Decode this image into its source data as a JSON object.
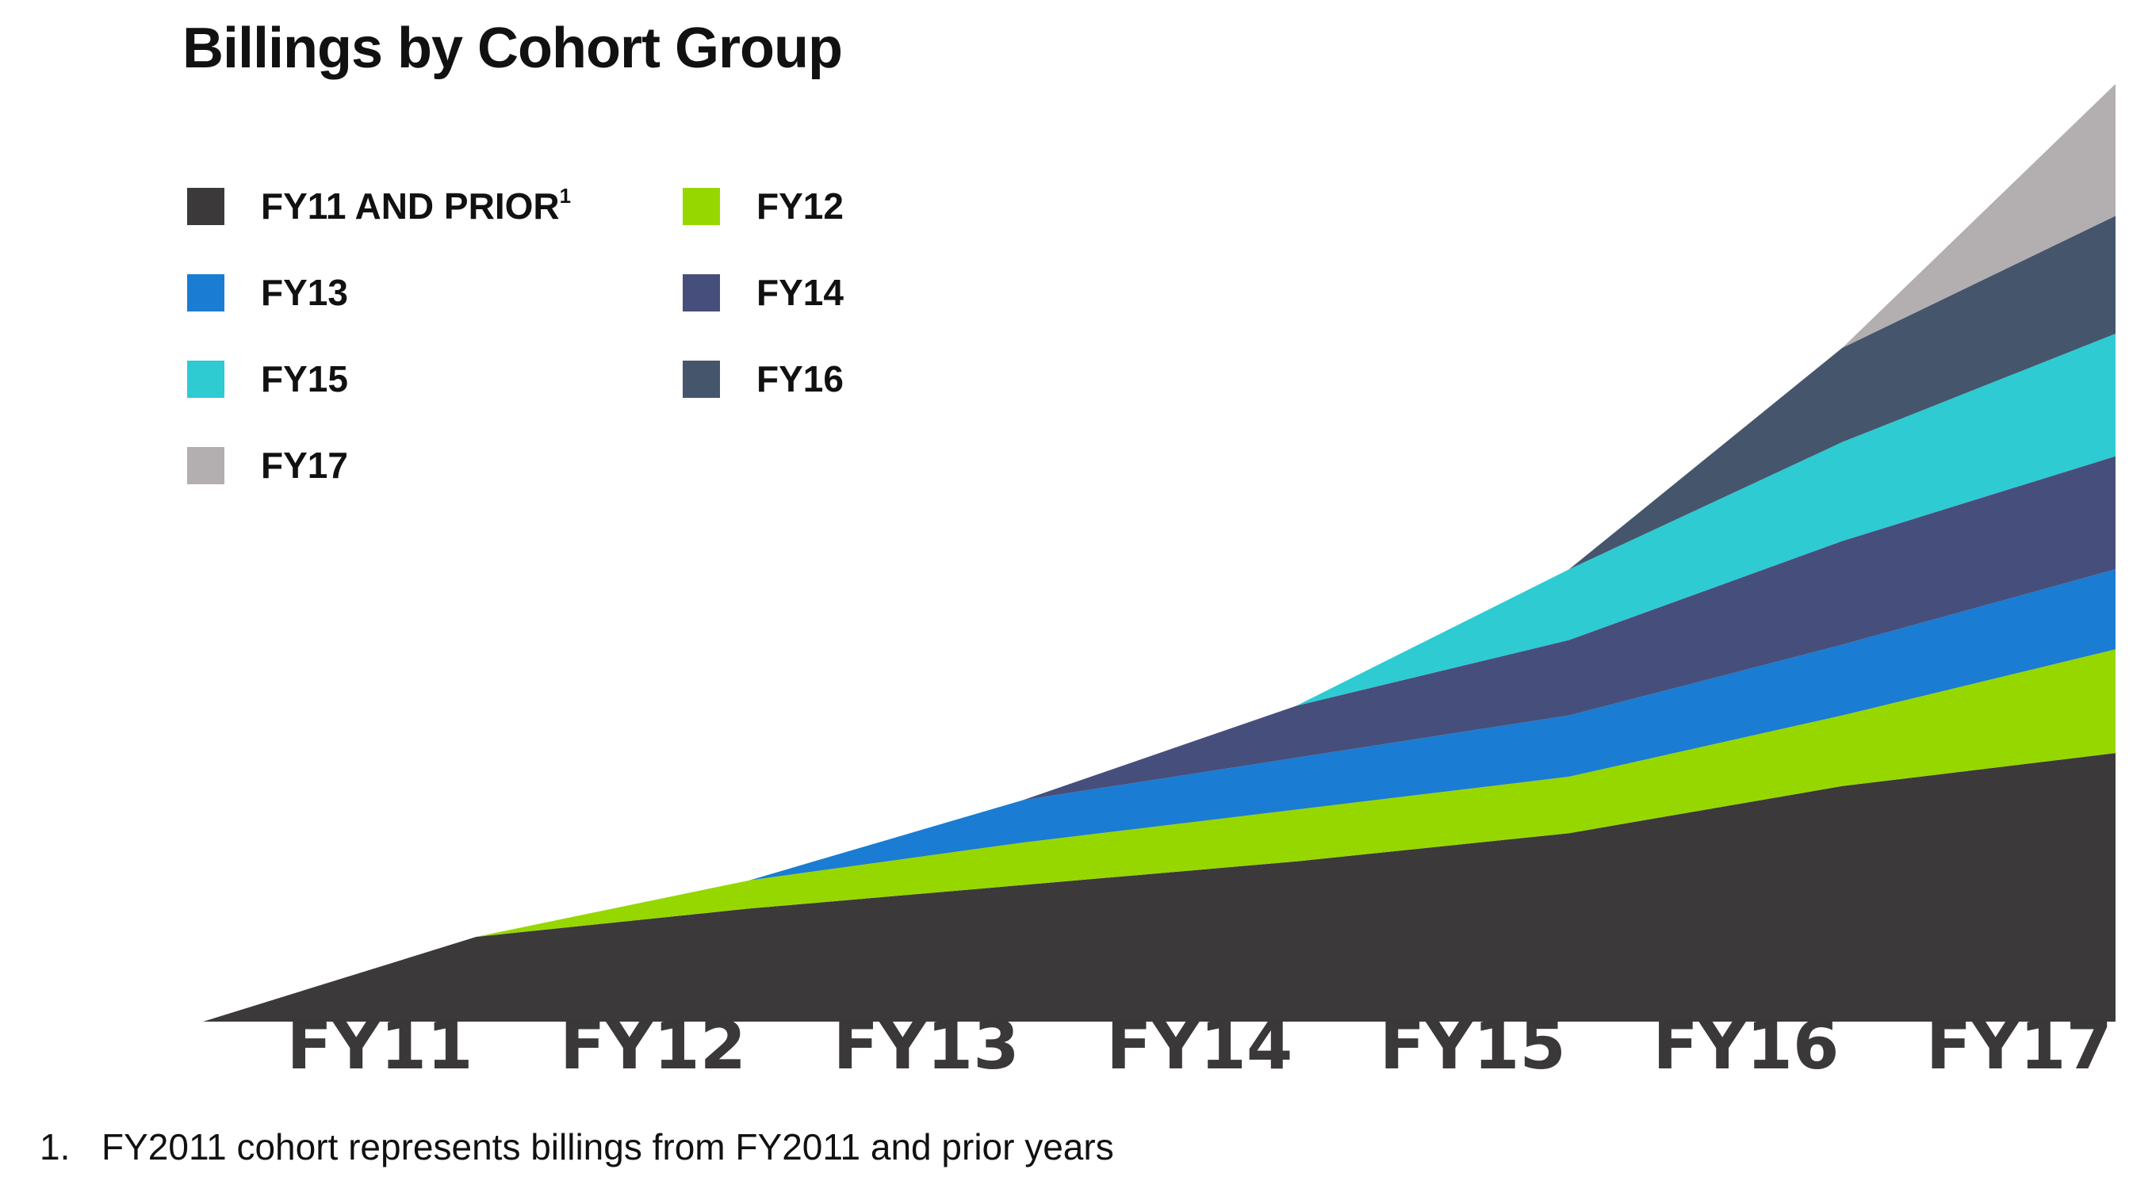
{
  "title": "Billings by Cohort Group",
  "footnote": {
    "number": "1.",
    "text": "FY2011 cohort represents billings from FY2011 and prior years"
  },
  "chart_data": {
    "type": "area",
    "stacked": true,
    "title": "Billings by Cohort Group",
    "xlabel": "",
    "ylabel": "",
    "categories": [
      "FY11",
      "FY12",
      "FY13",
      "FY14",
      "FY15",
      "FY16",
      "FY17"
    ],
    "x_axis_start_value": 0,
    "ylim": [
      0,
      100
    ],
    "grid": false,
    "legend_placement": "top-left",
    "series": [
      {
        "name": "FY11 AND PRIOR",
        "superscript": "1",
        "color": "#3c393a",
        "values": [
          9,
          12,
          14.5,
          17,
          20,
          25,
          28.5
        ]
      },
      {
        "name": "FY12",
        "color": "#97d700",
        "values": [
          null,
          3,
          4.5,
          5.5,
          6,
          7.5,
          11
        ]
      },
      {
        "name": "FY13",
        "color": "#1a7cd2",
        "values": [
          null,
          null,
          4.5,
          5.5,
          6.5,
          7.5,
          8.5
        ]
      },
      {
        "name": "FY14",
        "color": "#464f7c",
        "values": [
          null,
          null,
          null,
          5.5,
          8,
          11,
          12
        ]
      },
      {
        "name": "FY15",
        "color": "#2ecbd3",
        "values": [
          null,
          null,
          null,
          null,
          7.5,
          10.5,
          13
        ]
      },
      {
        "name": "FY16",
        "color": "#45566c",
        "values": [
          null,
          null,
          null,
          null,
          null,
          10,
          12.5
        ]
      },
      {
        "name": "FY17",
        "color": "#b3aeb0",
        "values": [
          null,
          null,
          null,
          null,
          null,
          null,
          14
        ]
      }
    ]
  }
}
